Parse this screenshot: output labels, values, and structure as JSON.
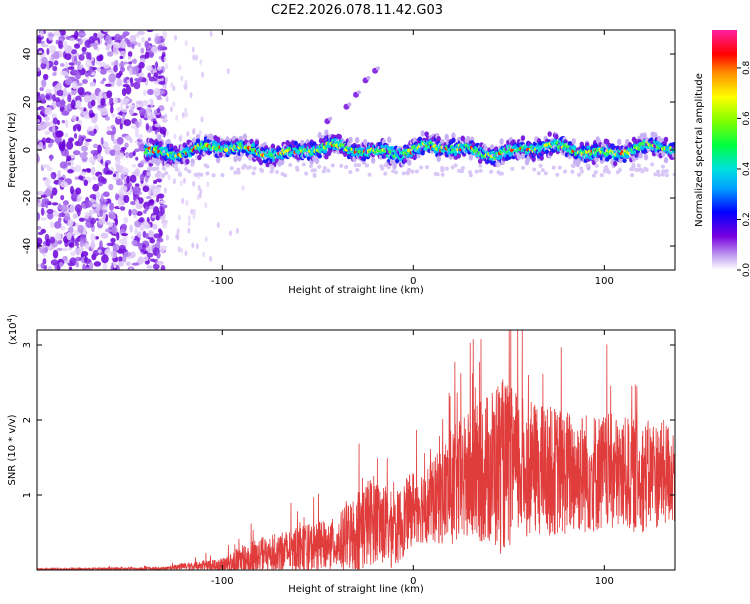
{
  "title": "C2E2.2026.078.11.42.G03",
  "chart_data": [
    {
      "type": "heatmap",
      "name": "spectrogram",
      "xlabel": "Height of straight line (km)",
      "ylabel": "Frequency (Hz)",
      "xlim": [
        -197,
        137
      ],
      "ylim": [
        -50,
        50
      ],
      "x_ticks": [
        -100,
        0,
        100
      ],
      "y_ticks": [
        -40,
        -20,
        0,
        20,
        40
      ],
      "colorbar": {
        "label": "Normalized spectral amplitude",
        "range": [
          0.0,
          0.95
        ],
        "ticks": [
          0.0,
          0.2,
          0.4,
          0.6,
          0.8
        ],
        "tick_labels": [
          "0.0",
          "0.2",
          "0.4",
          "0.6",
          "0.8"
        ]
      },
      "features": {
        "noise_region_x": [
          -197,
          -130
        ],
        "sparse_region_x": [
          -130,
          -110
        ],
        "signal_band_center_hz": 0,
        "signal_band_halfwidth_hz": 5,
        "arc_points": [
          [
            -45,
            12
          ],
          [
            -35,
            18
          ],
          [
            -30,
            23
          ],
          [
            -25,
            29
          ],
          [
            -20,
            33
          ]
        ]
      }
    },
    {
      "type": "line",
      "name": "snr",
      "xlabel": "Height of straight line (km)",
      "ylabel": "SNR (10 * v/v)",
      "y_scale_label": "(x10",
      "y_scale_exp": "4",
      "y_scale_close": ")",
      "xlim": [
        -197,
        137
      ],
      "ylim": [
        0,
        3.2
      ],
      "x_ticks": [
        -100,
        0,
        100
      ],
      "y_ticks": [
        1,
        2,
        3
      ],
      "color": "#e03c3c",
      "envelope": [
        {
          "x": -197,
          "base": 0.01,
          "amp": 0.01
        },
        {
          "x": -130,
          "base": 0.02,
          "amp": 0.02
        },
        {
          "x": -120,
          "base": 0.05,
          "amp": 0.05
        },
        {
          "x": -100,
          "base": 0.07,
          "amp": 0.1
        },
        {
          "x": -85,
          "base": 0.15,
          "amp": 0.25
        },
        {
          "x": -60,
          "base": 0.28,
          "amp": 0.3
        },
        {
          "x": -40,
          "base": 0.35,
          "amp": 0.35
        },
        {
          "x": -28,
          "base": 0.55,
          "amp": 0.6
        },
        {
          "x": -20,
          "base": 0.7,
          "amp": 0.6
        },
        {
          "x": -10,
          "base": 0.5,
          "amp": 0.5
        },
        {
          "x": 0,
          "base": 0.85,
          "amp": 0.5
        },
        {
          "x": 10,
          "base": 0.9,
          "amp": 0.55
        },
        {
          "x": 20,
          "base": 1.1,
          "amp": 0.8
        },
        {
          "x": 35,
          "base": 1.3,
          "amp": 0.95
        },
        {
          "x": 45,
          "base": 1.4,
          "amp": 1.2
        },
        {
          "x": 60,
          "base": 1.35,
          "amp": 0.9
        },
        {
          "x": 80,
          "base": 1.3,
          "amp": 0.85
        },
        {
          "x": 100,
          "base": 1.3,
          "amp": 0.8
        },
        {
          "x": 120,
          "base": 1.25,
          "amp": 0.75
        },
        {
          "x": 137,
          "base": 1.3,
          "amp": 0.7
        }
      ]
    }
  ]
}
